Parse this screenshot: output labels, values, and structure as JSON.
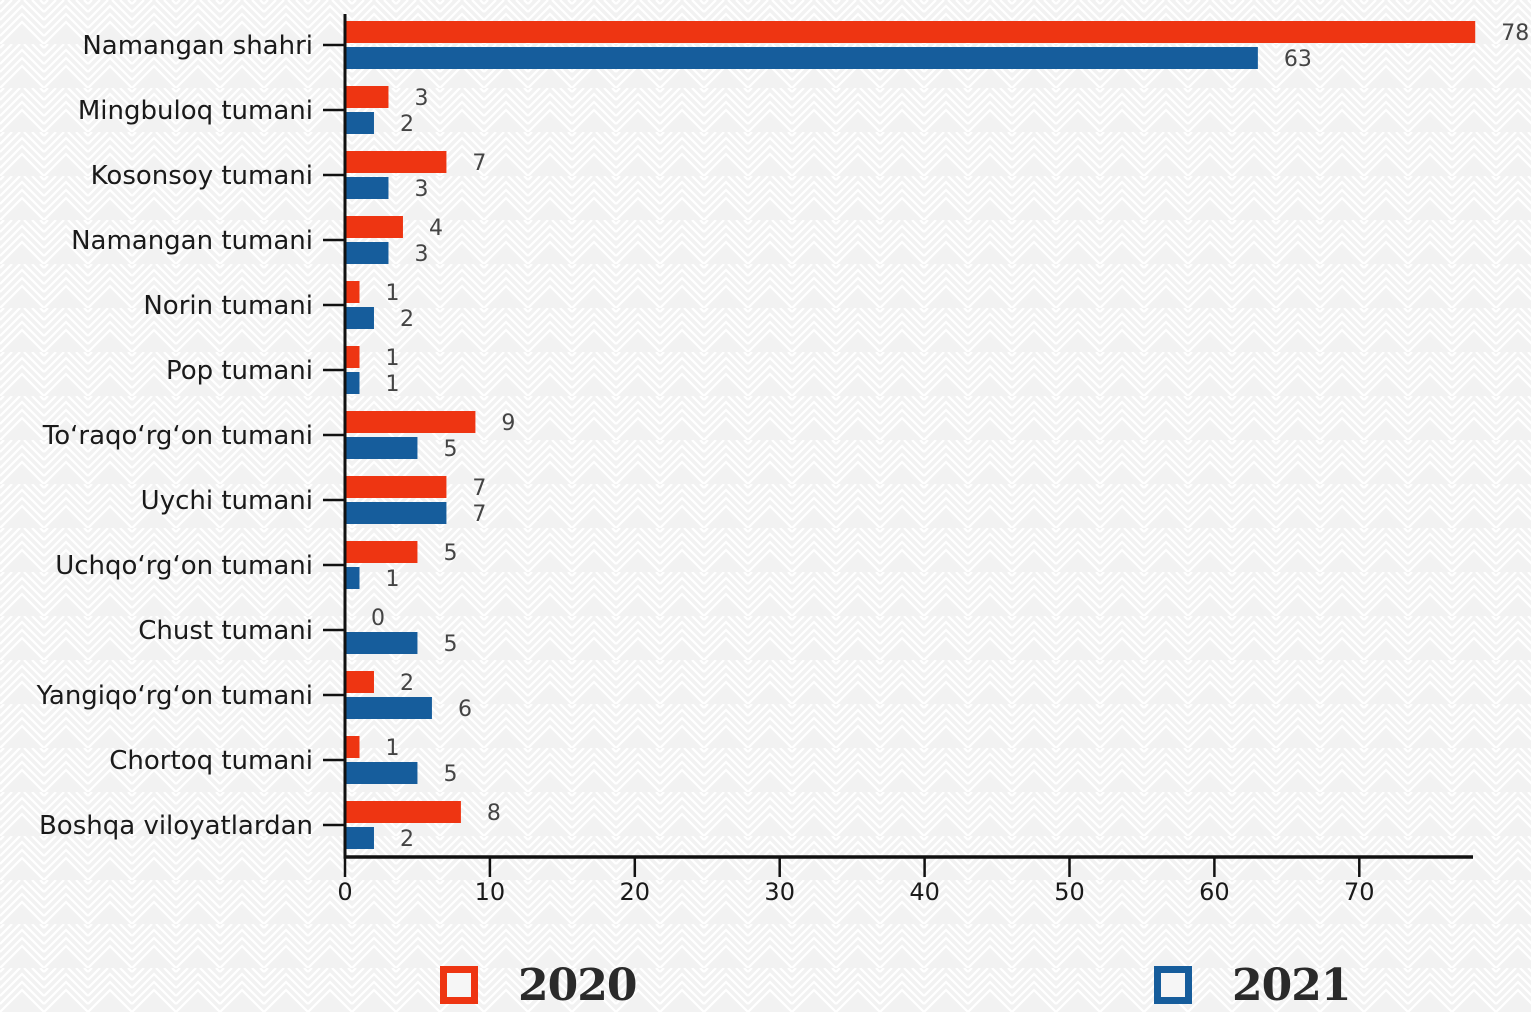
{
  "chart_data": {
    "type": "bar",
    "orientation": "horizontal",
    "categories": [
      "Namangan shahri",
      "Mingbuloq tumani",
      "Kosonsoy tumani",
      "Namangan tumani",
      "Norin tumani",
      "Pop tumani",
      "To‘raqo‘rg‘on tumani",
      "Uychi tumani",
      "Uchqo‘rg‘on tumani",
      "Chust tumani",
      "Yangiqo‘rg‘on tumani",
      "Chortoq tumani",
      "Boshqa viloyatlardan"
    ],
    "series": [
      {
        "name": "2020",
        "color": "#ee3512",
        "values": [
          78,
          3,
          7,
          4,
          1,
          1,
          9,
          7,
          5,
          0,
          2,
          1,
          8
        ]
      },
      {
        "name": "2021",
        "color": "#165d9c",
        "values": [
          63,
          2,
          3,
          3,
          2,
          1,
          5,
          7,
          1,
          5,
          6,
          5,
          2
        ]
      }
    ],
    "xlim": [
      0,
      78
    ],
    "xticks": [
      0,
      10,
      20,
      30,
      40,
      50,
      60,
      70
    ],
    "title": "",
    "xlabel": "",
    "ylabel": "",
    "grid": false,
    "legend_position": "bottom"
  },
  "legend": {
    "item_2020": "2020",
    "item_2021": "2021"
  }
}
